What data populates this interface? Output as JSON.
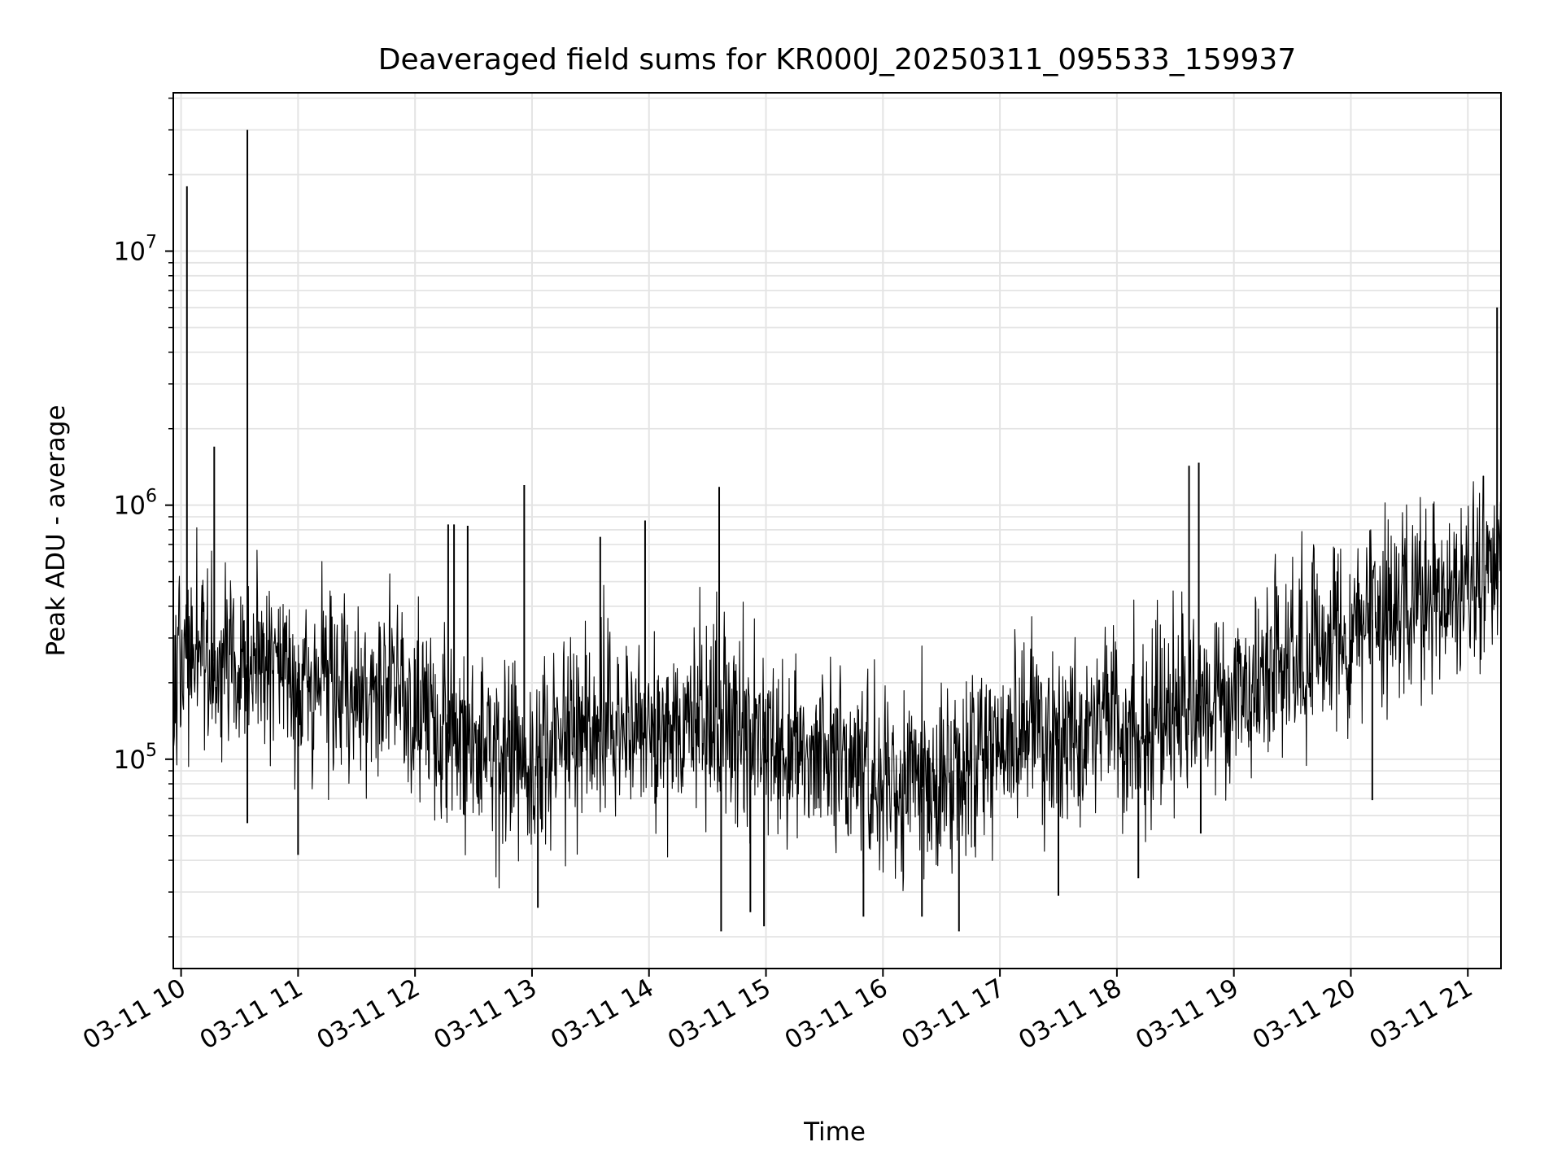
{
  "chart_data": {
    "type": "line",
    "title": "Deaveraged field sums for KR000J_20250311_095533_159937",
    "xlabel": "Time",
    "ylabel": "Peak ADU - average",
    "yscale": "log",
    "ylim": [
      15000,
      42000000
    ],
    "xlim": [
      "2025-03-11T09:56",
      "2025-03-11T21:17"
    ],
    "grid": true,
    "color": "#000000",
    "grid_color": "#e4e4e4",
    "x_ticks": [
      "03-11 10",
      "03-11 11",
      "03-11 12",
      "03-11 13",
      "03-11 14",
      "03-11 15",
      "03-11 16",
      "03-11 17",
      "03-11 18",
      "03-11 19",
      "03-11 20",
      "03-11 21"
    ],
    "y_ticks": [
      {
        "base": "10",
        "exp": "5",
        "value": 100000
      },
      {
        "base": "10",
        "exp": "6",
        "value": 1000000
      },
      {
        "base": "10",
        "exp": "7",
        "value": 10000000
      }
    ],
    "series": [
      {
        "trend": [
          [
            "2025-03-11T09:56",
            250000
          ],
          [
            "2025-03-11T10:30",
            240000
          ],
          [
            "2025-03-11T11:00",
            220000
          ],
          [
            "2025-03-11T11:30",
            200000
          ],
          [
            "2025-03-11T12:00",
            150000
          ],
          [
            "2025-03-11T12:30",
            110000
          ],
          [
            "2025-03-11T13:00",
            100000
          ],
          [
            "2025-03-11T13:30",
            130000
          ],
          [
            "2025-03-11T14:00",
            120000
          ],
          [
            "2025-03-11T14:30",
            150000
          ],
          [
            "2025-03-11T15:00",
            120000
          ],
          [
            "2025-03-11T15:30",
            110000
          ],
          [
            "2025-03-11T16:00",
            80000
          ],
          [
            "2025-03-11T16:30",
            75000
          ],
          [
            "2025-03-11T17:00",
            110000
          ],
          [
            "2025-03-11T17:30",
            120000
          ],
          [
            "2025-03-11T18:00",
            130000
          ],
          [
            "2025-03-11T18:30",
            150000
          ],
          [
            "2025-03-11T19:00",
            180000
          ],
          [
            "2025-03-11T19:30",
            250000
          ],
          [
            "2025-03-11T20:00",
            320000
          ],
          [
            "2025-03-11T20:30",
            420000
          ],
          [
            "2025-03-11T21:00",
            500000
          ],
          [
            "2025-03-11T21:17",
            520000
          ]
        ],
        "spikes": [
          [
            "2025-03-11T10:03",
            18000000
          ],
          [
            "2025-03-11T10:17",
            1700000
          ],
          [
            "2025-03-11T10:34",
            30000000
          ],
          [
            "2025-03-11T10:34",
            56000
          ],
          [
            "2025-03-11T11:00",
            42000
          ],
          [
            "2025-03-11T12:17",
            840000
          ],
          [
            "2025-03-11T12:20",
            840000
          ],
          [
            "2025-03-11T12:27",
            830000
          ],
          [
            "2025-03-11T12:56",
            1200000
          ],
          [
            "2025-03-11T13:03",
            26000
          ],
          [
            "2025-03-11T13:35",
            750000
          ],
          [
            "2025-03-11T13:58",
            870000
          ],
          [
            "2025-03-11T14:36",
            1180000
          ],
          [
            "2025-03-11T14:37",
            21000
          ],
          [
            "2025-03-11T14:52",
            25000
          ],
          [
            "2025-03-11T14:59",
            22000
          ],
          [
            "2025-03-11T15:50",
            24000
          ],
          [
            "2025-03-11T16:20",
            24000
          ],
          [
            "2025-03-11T16:39",
            21000
          ],
          [
            "2025-03-11T17:30",
            29000
          ],
          [
            "2025-03-11T18:11",
            34000
          ],
          [
            "2025-03-11T18:37",
            1430000
          ],
          [
            "2025-03-11T18:42",
            1470000
          ],
          [
            "2025-03-11T18:43",
            51000
          ],
          [
            "2025-03-11T20:11",
            69000
          ],
          [
            "2025-03-11T21:15",
            6000000
          ]
        ]
      }
    ]
  }
}
